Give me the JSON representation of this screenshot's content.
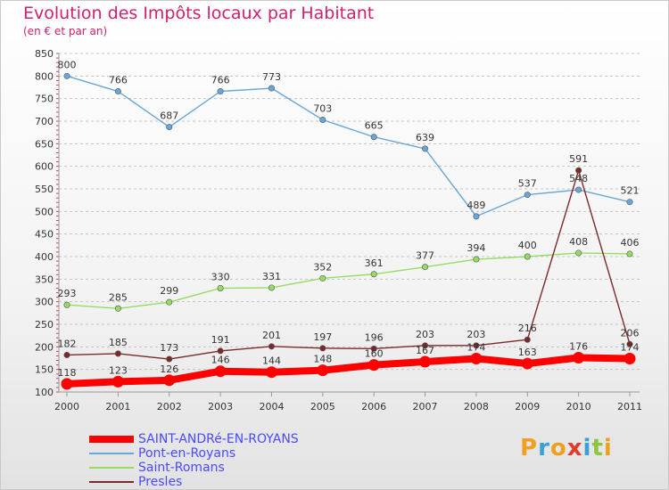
{
  "header": {
    "title": "Evolution des Impôts locaux par Habitant",
    "subtitle": "(en € et par an)"
  },
  "brand": {
    "letters": [
      "P",
      "r",
      "o",
      "x",
      "i",
      "t",
      "i"
    ],
    "colors": [
      "#f0a020",
      "#3aa0d8",
      "#f0a020",
      "#e23a2a",
      "#3aa0d8",
      "#8cc63f",
      "#f0a020"
    ]
  },
  "legend": {
    "text_color": "#4a4aff"
  },
  "chart_data": {
    "type": "line",
    "categories": [
      "2000",
      "2001",
      "2002",
      "2003",
      "2004",
      "2005",
      "2006",
      "2007",
      "2008",
      "2009",
      "2010",
      "2011"
    ],
    "yticks": [
      100,
      150,
      200,
      250,
      300,
      350,
      400,
      450,
      500,
      550,
      600,
      650,
      700,
      750,
      800,
      850
    ],
    "ylim": [
      100,
      850
    ],
    "grid": "horizontal dashed",
    "legend_position": "bottom-left",
    "series": [
      {
        "name": "SAINT-ANDRé-EN-ROYANS",
        "color": "#ff0000",
        "values": [
          118,
          123,
          126,
          146,
          144,
          148,
          160,
          167,
          174,
          163,
          176,
          174
        ],
        "labels": [
          "118",
          "123",
          "126",
          "146",
          "144",
          "148",
          "160",
          "167",
          "174",
          "163",
          "176",
          "174"
        ]
      },
      {
        "name": "Pont-en-Royans",
        "color": "#6aa6d8",
        "values": [
          800,
          766,
          687,
          766,
          773,
          703,
          665,
          639,
          489,
          537,
          548,
          521
        ],
        "labels": [
          "800",
          "766",
          "687",
          "766",
          "773",
          "703",
          "665",
          "639",
          "489",
          "537",
          "548",
          "521"
        ]
      },
      {
        "name": "Saint-Romans",
        "color": "#96dc64",
        "values": [
          293,
          285,
          299,
          330,
          331,
          352,
          361,
          377,
          394,
          400,
          408,
          406
        ],
        "labels": [
          "293",
          "285",
          "299",
          "330",
          "331",
          "352",
          "361",
          "377",
          "394",
          "400",
          "408",
          "406"
        ]
      },
      {
        "name": "Presles",
        "color": "#7a2a2a",
        "values": [
          182,
          185,
          173,
          191,
          201,
          197,
          196,
          203,
          203,
          216,
          591,
          206
        ],
        "labels": [
          "182",
          "185",
          "173",
          "191",
          "201",
          "197",
          "196",
          "203",
          "203",
          "216",
          "591",
          "206"
        ]
      }
    ]
  }
}
